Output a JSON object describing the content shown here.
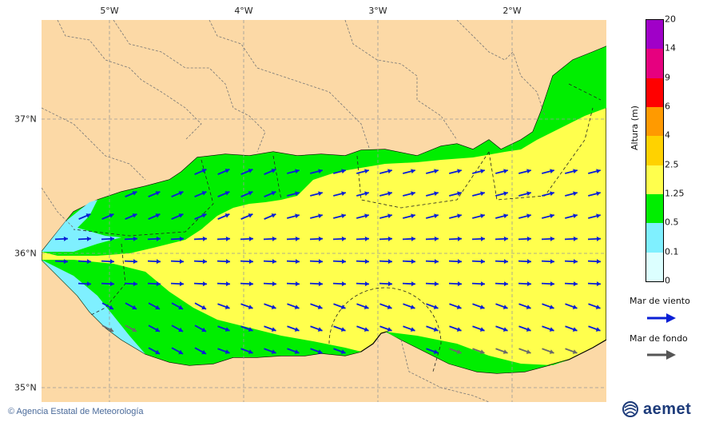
{
  "map": {
    "lon_labels": [
      "5°W",
      "4°W",
      "3°W",
      "2°W"
    ],
    "lat_labels": [
      "37°N",
      "36°N",
      "35°N"
    ],
    "colors": {
      "land": "#fcd9a6",
      "sea_0": "#dcffff",
      "sea_01": "#7ff0ff",
      "sea_05": "#00ee00",
      "sea_125": "#ffff4d",
      "border": "#777777",
      "coast": "#000000",
      "wind_arrow": "#0a1fd6",
      "swell_arrow": "#6a6a6a"
    }
  },
  "colorbar": {
    "title": "Altura (m)",
    "ticks": [
      "20",
      "14",
      "9",
      "6",
      "4",
      "2.5",
      "1.25",
      "0.5",
      "0.1",
      "0"
    ],
    "colors": [
      "#a000c8",
      "#e6007f",
      "#ff0000",
      "#ff9a00",
      "#ffd200",
      "#ffff4d",
      "#00ee00",
      "#7ff0ff",
      "#dcffff"
    ]
  },
  "legend": {
    "wind_label": "Mar de viento",
    "swell_label": "Mar de fondo"
  },
  "footer": {
    "credit": "© Agencia Estatal de Meteorología",
    "logo_text": "aemet"
  }
}
